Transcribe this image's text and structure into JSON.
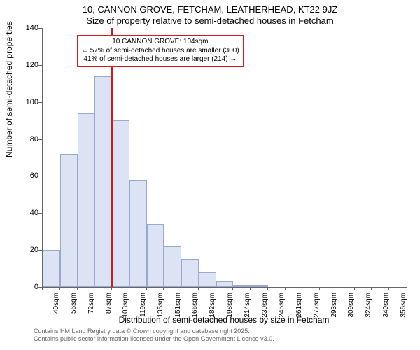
{
  "title_main": "10, CANNON GROVE, FETCHAM, LEATHERHEAD, KT22 9JZ",
  "title_sub": "Size of property relative to semi-detached houses in Fetcham",
  "y_axis_label": "Number of semi-detached properties",
  "x_axis_label": "Distribution of semi-detached houses by size in Fetcham",
  "chart": {
    "type": "histogram",
    "ylim": [
      0,
      140
    ],
    "ytick_step": 20,
    "yticks": [
      0,
      20,
      40,
      60,
      80,
      100,
      120,
      140
    ],
    "bar_fill": "#dbe3f4",
    "bar_border": "#9aa8c9",
    "axis_color": "#666666",
    "background_color": "#ffffff",
    "x_labels": [
      "40sqm",
      "56sqm",
      "72sqm",
      "87sqm",
      "103sqm",
      "119sqm",
      "135sqm",
      "151sqm",
      "166sqm",
      "182sqm",
      "198sqm",
      "214sqm",
      "230sqm",
      "245sqm",
      "261sqm",
      "277sqm",
      "293sqm",
      "309sqm",
      "324sqm",
      "340sqm",
      "356sqm"
    ],
    "values": [
      20,
      72,
      94,
      114,
      90,
      58,
      34,
      22,
      15,
      8,
      3,
      1,
      1,
      0,
      0,
      0,
      0,
      0,
      0,
      0,
      0
    ]
  },
  "reference_line": {
    "position_index": 4,
    "color": "#d01c1c"
  },
  "callout": {
    "border_color": "#d01c1c",
    "line1": "10 CANNON GROVE: 104sqm",
    "line2": "← 57% of semi-detached houses are smaller (300)",
    "line3": "41% of semi-detached houses are larger (214) →"
  },
  "footer": {
    "line1": "Contains HM Land Registry data © Crown copyright and database right 2025.",
    "line2": "Contains public sector information licensed under the Open Government Licence v3.0."
  }
}
